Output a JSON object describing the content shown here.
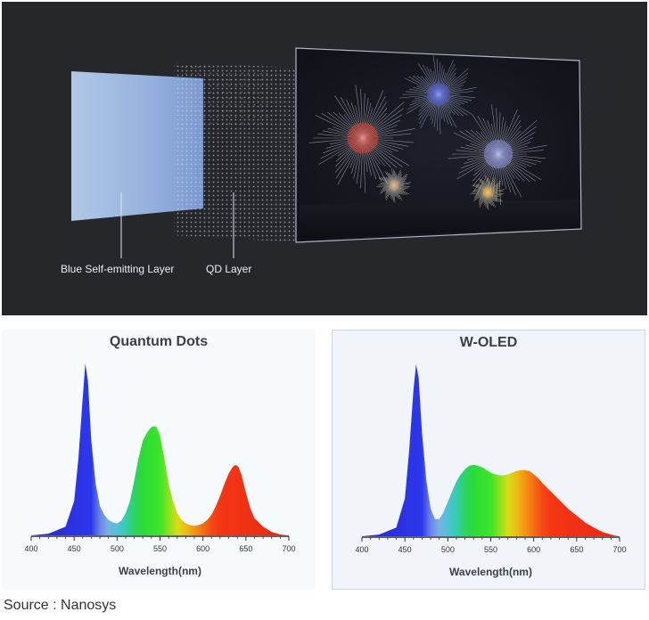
{
  "hero": {
    "labels": {
      "blue_layer": "Blue Self-emitting Layer",
      "qd_layer": "QD Layer"
    },
    "colors": {
      "background": "#25272b",
      "blue_layer": "#9ab8e6",
      "tv_frame": "#aeb6c6"
    }
  },
  "source": "Source : Nanosys",
  "chart_data": [
    {
      "type": "area",
      "title": "Quantum Dots",
      "xlabel": "Wavelength(nm)",
      "ylabel": "",
      "xlim": [
        400,
        700
      ],
      "xticks": [
        "400",
        "450",
        "500",
        "550",
        "600",
        "650",
        "700"
      ],
      "grid": false,
      "series": [
        {
          "x": [
            400,
            420,
            440,
            450,
            455,
            460,
            463,
            466,
            470,
            475,
            480,
            485,
            490,
            495,
            500,
            505,
            510,
            515,
            520,
            525,
            530,
            535,
            540,
            543,
            546,
            550,
            555,
            560,
            565,
            570,
            575,
            580,
            585,
            590,
            595,
            600,
            605,
            610,
            615,
            620,
            625,
            630,
            635,
            638,
            641,
            645,
            650,
            655,
            660,
            670,
            680,
            690,
            700
          ],
          "y": [
            0.0,
            0.01,
            0.05,
            0.2,
            0.45,
            0.8,
            1.0,
            0.9,
            0.55,
            0.3,
            0.17,
            0.12,
            0.09,
            0.075,
            0.07,
            0.085,
            0.13,
            0.2,
            0.32,
            0.45,
            0.55,
            0.6,
            0.63,
            0.635,
            0.63,
            0.58,
            0.45,
            0.3,
            0.2,
            0.13,
            0.09,
            0.07,
            0.06,
            0.055,
            0.06,
            0.07,
            0.09,
            0.12,
            0.17,
            0.23,
            0.3,
            0.36,
            0.4,
            0.41,
            0.4,
            0.35,
            0.25,
            0.16,
            0.1,
            0.05,
            0.02,
            0.005,
            0.0
          ]
        }
      ]
    },
    {
      "type": "area",
      "title": "W-OLED",
      "xlabel": "Wavelength(nm)",
      "ylabel": "",
      "xlim": [
        400,
        700
      ],
      "xticks": [
        "400",
        "450",
        "500",
        "550",
        "600",
        "650",
        "700"
      ],
      "grid": false,
      "series": [
        {
          "x": [
            400,
            420,
            440,
            450,
            455,
            460,
            463,
            466,
            470,
            475,
            480,
            485,
            490,
            495,
            500,
            505,
            510,
            515,
            520,
            525,
            530,
            535,
            540,
            545,
            550,
            555,
            560,
            565,
            570,
            575,
            580,
            585,
            590,
            595,
            600,
            605,
            610,
            620,
            630,
            640,
            650,
            660,
            670,
            680,
            690,
            695,
            700
          ],
          "y": [
            0.0,
            0.01,
            0.05,
            0.22,
            0.5,
            0.85,
            1.0,
            0.92,
            0.6,
            0.32,
            0.16,
            0.1,
            0.1,
            0.14,
            0.2,
            0.26,
            0.32,
            0.36,
            0.39,
            0.41,
            0.415,
            0.41,
            0.4,
            0.385,
            0.37,
            0.36,
            0.355,
            0.355,
            0.36,
            0.37,
            0.38,
            0.385,
            0.385,
            0.38,
            0.36,
            0.34,
            0.31,
            0.26,
            0.21,
            0.16,
            0.12,
            0.08,
            0.05,
            0.025,
            0.01,
            0.003,
            0.0
          ]
        }
      ]
    }
  ]
}
